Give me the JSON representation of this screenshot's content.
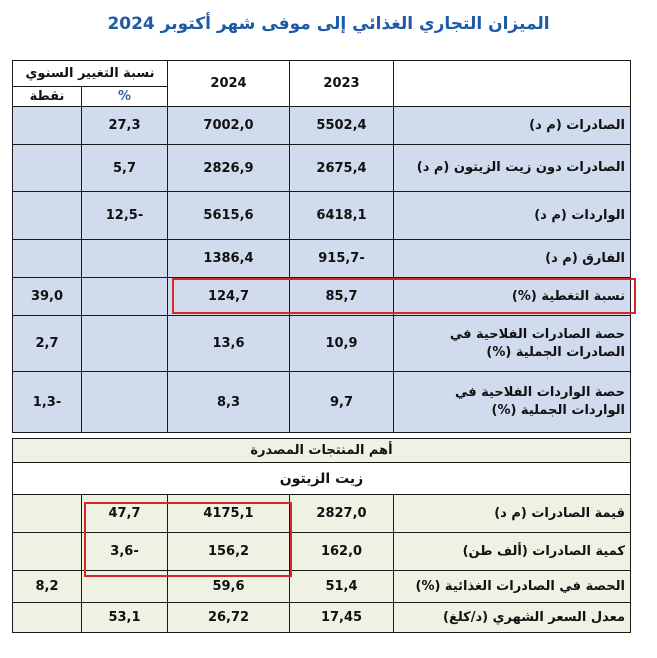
{
  "title": "الميزان التجاري الغذائي إلى موفى شهر أكتوبر 2024",
  "header": {
    "col_2023": "2023",
    "col_2024": "2024",
    "annual_change": "نسبة التغيير السنوي",
    "unit_percent": "%",
    "unit_point": "نقطة"
  },
  "rows": [
    {
      "label": "الصادرات (م د)",
      "v2023": "5502,4",
      "v2024": "7002,0",
      "pct": "27,3",
      "pt": ""
    },
    {
      "label": "الصادرات دون زيت الزيتون (م د)",
      "v2023": "2675,4",
      "v2024": "2826,9",
      "pct": "5,7",
      "pt": ""
    },
    {
      "label": "الواردات (م د)",
      "v2023": "6418,1",
      "v2024": "5615,6",
      "pct": "-12,5",
      "pt": ""
    },
    {
      "label": "الفارق (م د)",
      "v2023": "-915,7",
      "v2024": "1386,4",
      "pct": "",
      "pt": ""
    },
    {
      "label": "نسبة التغطية (%)",
      "v2023": "85,7",
      "v2024": "124,7",
      "pct": "",
      "pt": "39,0"
    },
    {
      "label": "حصة الصادرات الفلاحية في الصادرات الجملية (%)",
      "v2023": "10,9",
      "v2024": "13,6",
      "pct": "",
      "pt": "2,7"
    },
    {
      "label": "حصة الواردات الفلاحية في الواردات الجملية (%)",
      "v2023": "9,7",
      "v2024": "8,3",
      "pct": "",
      "pt": "-1,3"
    }
  ],
  "section_title": "أهم المنتجات المصدرة",
  "subsection_title": "زيت الزيتون",
  "olive_rows": [
    {
      "label": "قيمة الصادرات (م د)",
      "v2023": "2827,0",
      "v2024": "4175,1",
      "pct": "47,7",
      "pt": ""
    },
    {
      "label": "كمية الصادرات (ألف طن)",
      "v2023": "162,0",
      "v2024": "156,2",
      "pct": "-3,6",
      "pt": ""
    },
    {
      "label": "الحصة في الصادرات الغذائية (%)",
      "v2023": "51,4",
      "v2024": "59,6",
      "pct": "",
      "pt": "8,2"
    },
    {
      "label": "معدل السعر الشهري (د/كلغ)",
      "v2023": "17,45",
      "v2024": "26,72",
      "pct": "53,1",
      "pt": ""
    }
  ],
  "colors": {
    "title": "#1f5aa6",
    "header_text": "#2f63a8",
    "row_blue": "#d0dced",
    "section_green": "#eef2e2",
    "positive": "#1f9a3a",
    "negative": "#c42020",
    "highlight": "#d9262b"
  }
}
